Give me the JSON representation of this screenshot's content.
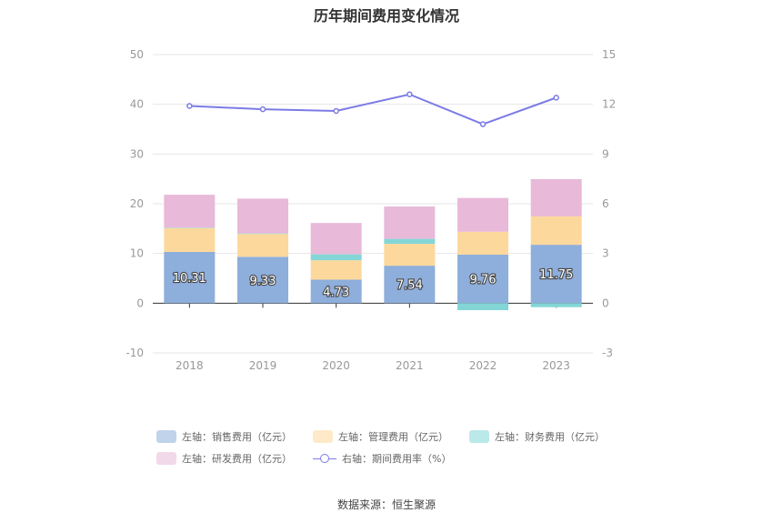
{
  "title": "历年期间费用变化情况",
  "source": "数据来源：恒生聚源",
  "chart_data": {
    "type": "bar",
    "stacked": true,
    "categories": [
      "2018",
      "2019",
      "2020",
      "2021",
      "2022",
      "2023"
    ],
    "left_axis": {
      "min": -10,
      "max": 50,
      "ticks": [
        -10,
        0,
        10,
        20,
        30,
        40,
        50
      ]
    },
    "right_axis": {
      "min": -3,
      "max": 15,
      "ticks": [
        -3,
        0,
        3,
        6,
        9,
        12,
        15
      ]
    },
    "grid": true,
    "legend_position": "bottom",
    "series": [
      {
        "name": "左轴：销售费用（亿元）",
        "axis": "left",
        "color": "#8eaedb",
        "values": [
          10.31,
          9.33,
          4.73,
          7.54,
          9.76,
          11.75
        ],
        "labels": [
          "10.31",
          "9.33",
          "4.73",
          "7.54",
          "9.76",
          "11.75"
        ]
      },
      {
        "name": "左轴：管理费用（亿元）",
        "axis": "left",
        "color": "#fdd89c",
        "values": [
          4.8,
          4.6,
          3.9,
          4.4,
          4.6,
          5.7
        ]
      },
      {
        "name": "左轴：财务费用（亿元）",
        "axis": "left",
        "color": "#84d6d6",
        "values": [
          0.1,
          0.1,
          1.2,
          1.0,
          -1.4,
          -0.8
        ]
      },
      {
        "name": "左轴：研发费用（亿元）",
        "axis": "left",
        "color": "#e8b9d9",
        "values": [
          6.6,
          7.0,
          6.3,
          6.5,
          6.8,
          7.5
        ]
      },
      {
        "name": "右轴：期间费用率（%）",
        "axis": "right",
        "type": "line",
        "color": "#7b7be6",
        "values": [
          11.9,
          11.7,
          11.6,
          12.6,
          10.8,
          12.4
        ]
      }
    ]
  }
}
